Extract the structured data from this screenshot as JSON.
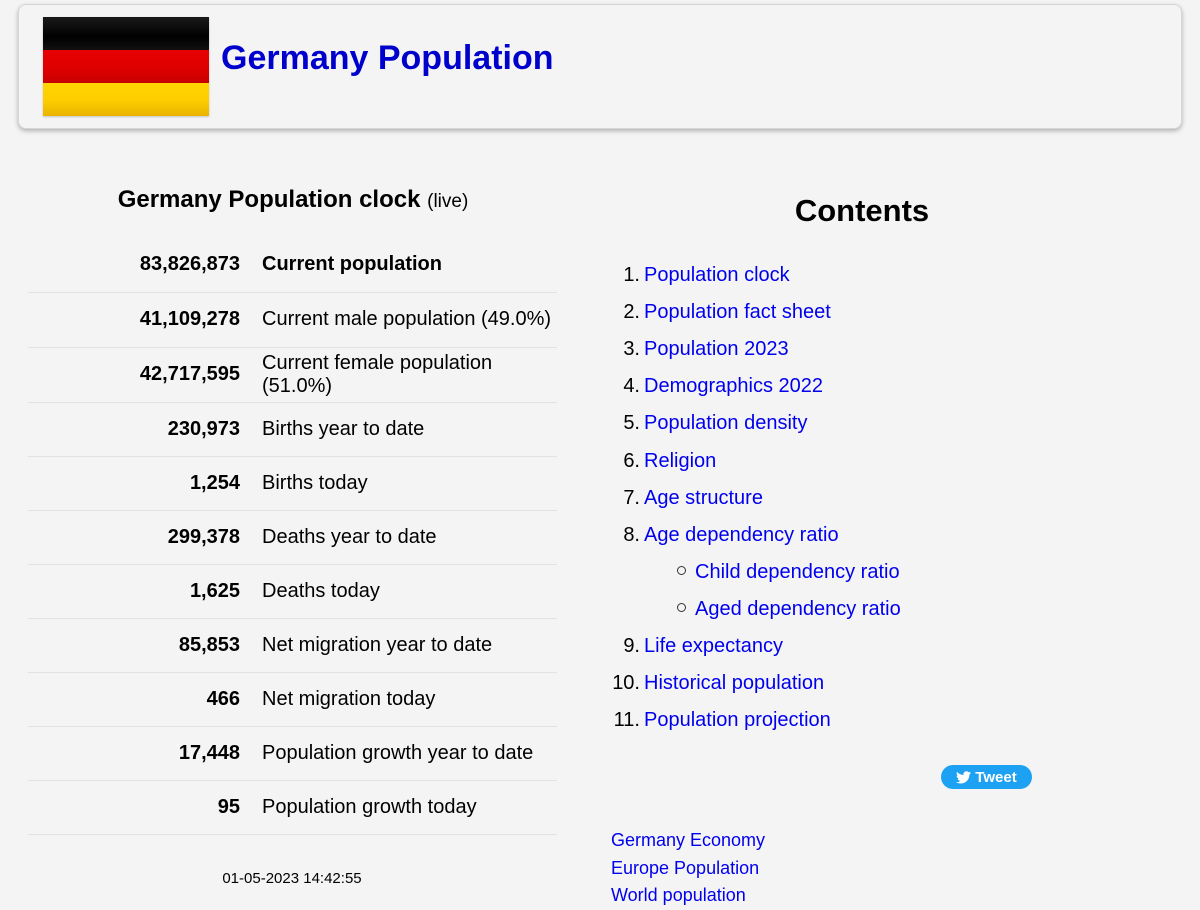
{
  "header": {
    "title": "Germany Population",
    "flag_colors": [
      "#000000",
      "#dd0000",
      "#ffce00"
    ]
  },
  "clock": {
    "heading": "Germany Population clock",
    "live_label": "(live)",
    "rows": [
      {
        "value": "83,826,873",
        "label": "Current population"
      },
      {
        "value": "41,109,278",
        "label": "Current male population (49.0%)"
      },
      {
        "value": "42,717,595",
        "label": "Current female population (51.0%)"
      },
      {
        "value": "230,973",
        "label": "Births year to date"
      },
      {
        "value": "1,254",
        "label": "Births today"
      },
      {
        "value": "299,378",
        "label": "Deaths year to date"
      },
      {
        "value": "1,625",
        "label": "Deaths today"
      },
      {
        "value": "85,853",
        "label": "Net migration year to date"
      },
      {
        "value": "466",
        "label": "Net migration today"
      },
      {
        "value": "17,448",
        "label": "Population growth year to date"
      },
      {
        "value": "95",
        "label": "Population growth today"
      }
    ],
    "timestamp": "01-05-2023 14:42:55"
  },
  "contents": {
    "heading": "Contents",
    "items": [
      {
        "num": "1.",
        "label": "Population clock"
      },
      {
        "num": "2.",
        "label": "Population fact sheet"
      },
      {
        "num": "3.",
        "label": "Population 2023"
      },
      {
        "num": "4.",
        "label": "Demographics 2022"
      },
      {
        "num": "5.",
        "label": "Population density"
      },
      {
        "num": "6.",
        "label": "Religion"
      },
      {
        "num": "7.",
        "label": "Age structure"
      },
      {
        "num": "8.",
        "label": "Age dependency ratio"
      },
      {
        "num": "",
        "label": "Child dependency ratio",
        "sub": true
      },
      {
        "num": "",
        "label": "Aged dependency ratio",
        "sub": true
      },
      {
        "num": "9.",
        "label": "Life expectancy"
      },
      {
        "num": "10.",
        "label": "Historical population"
      },
      {
        "num": "11.",
        "label": "Population projection"
      }
    ]
  },
  "tweet_button": {
    "label": "Tweet",
    "icon": "twitter-bird-icon",
    "color": "#1da1f2"
  },
  "related_links": [
    "Germany Economy",
    "Europe Population",
    "World population"
  ],
  "link_color": "#0000ee"
}
